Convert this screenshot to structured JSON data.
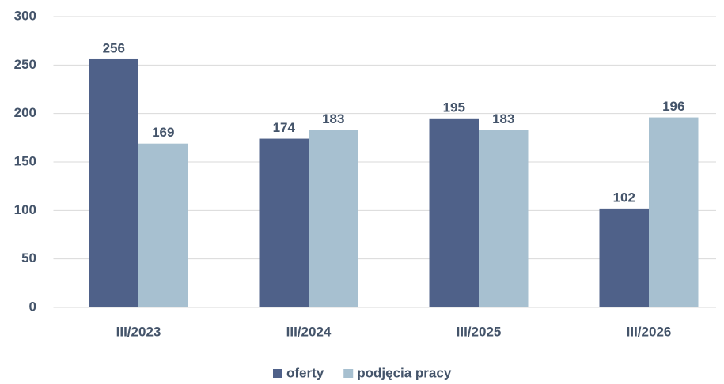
{
  "chart_data": {
    "type": "bar",
    "categories": [
      "III/2023",
      "III/2024",
      "III/2025",
      "III/2026"
    ],
    "series": [
      {
        "name": "oferty",
        "color": "#4f6189",
        "values": [
          256,
          174,
          195,
          102
        ]
      },
      {
        "name": "podjęcia pracy",
        "color": "#a7c0d0",
        "values": [
          169,
          183,
          183,
          196
        ]
      }
    ],
    "ylim": [
      0,
      300
    ],
    "yticks": [
      0,
      50,
      100,
      150,
      200,
      250,
      300
    ],
    "grid": true,
    "legend": "bottom"
  }
}
